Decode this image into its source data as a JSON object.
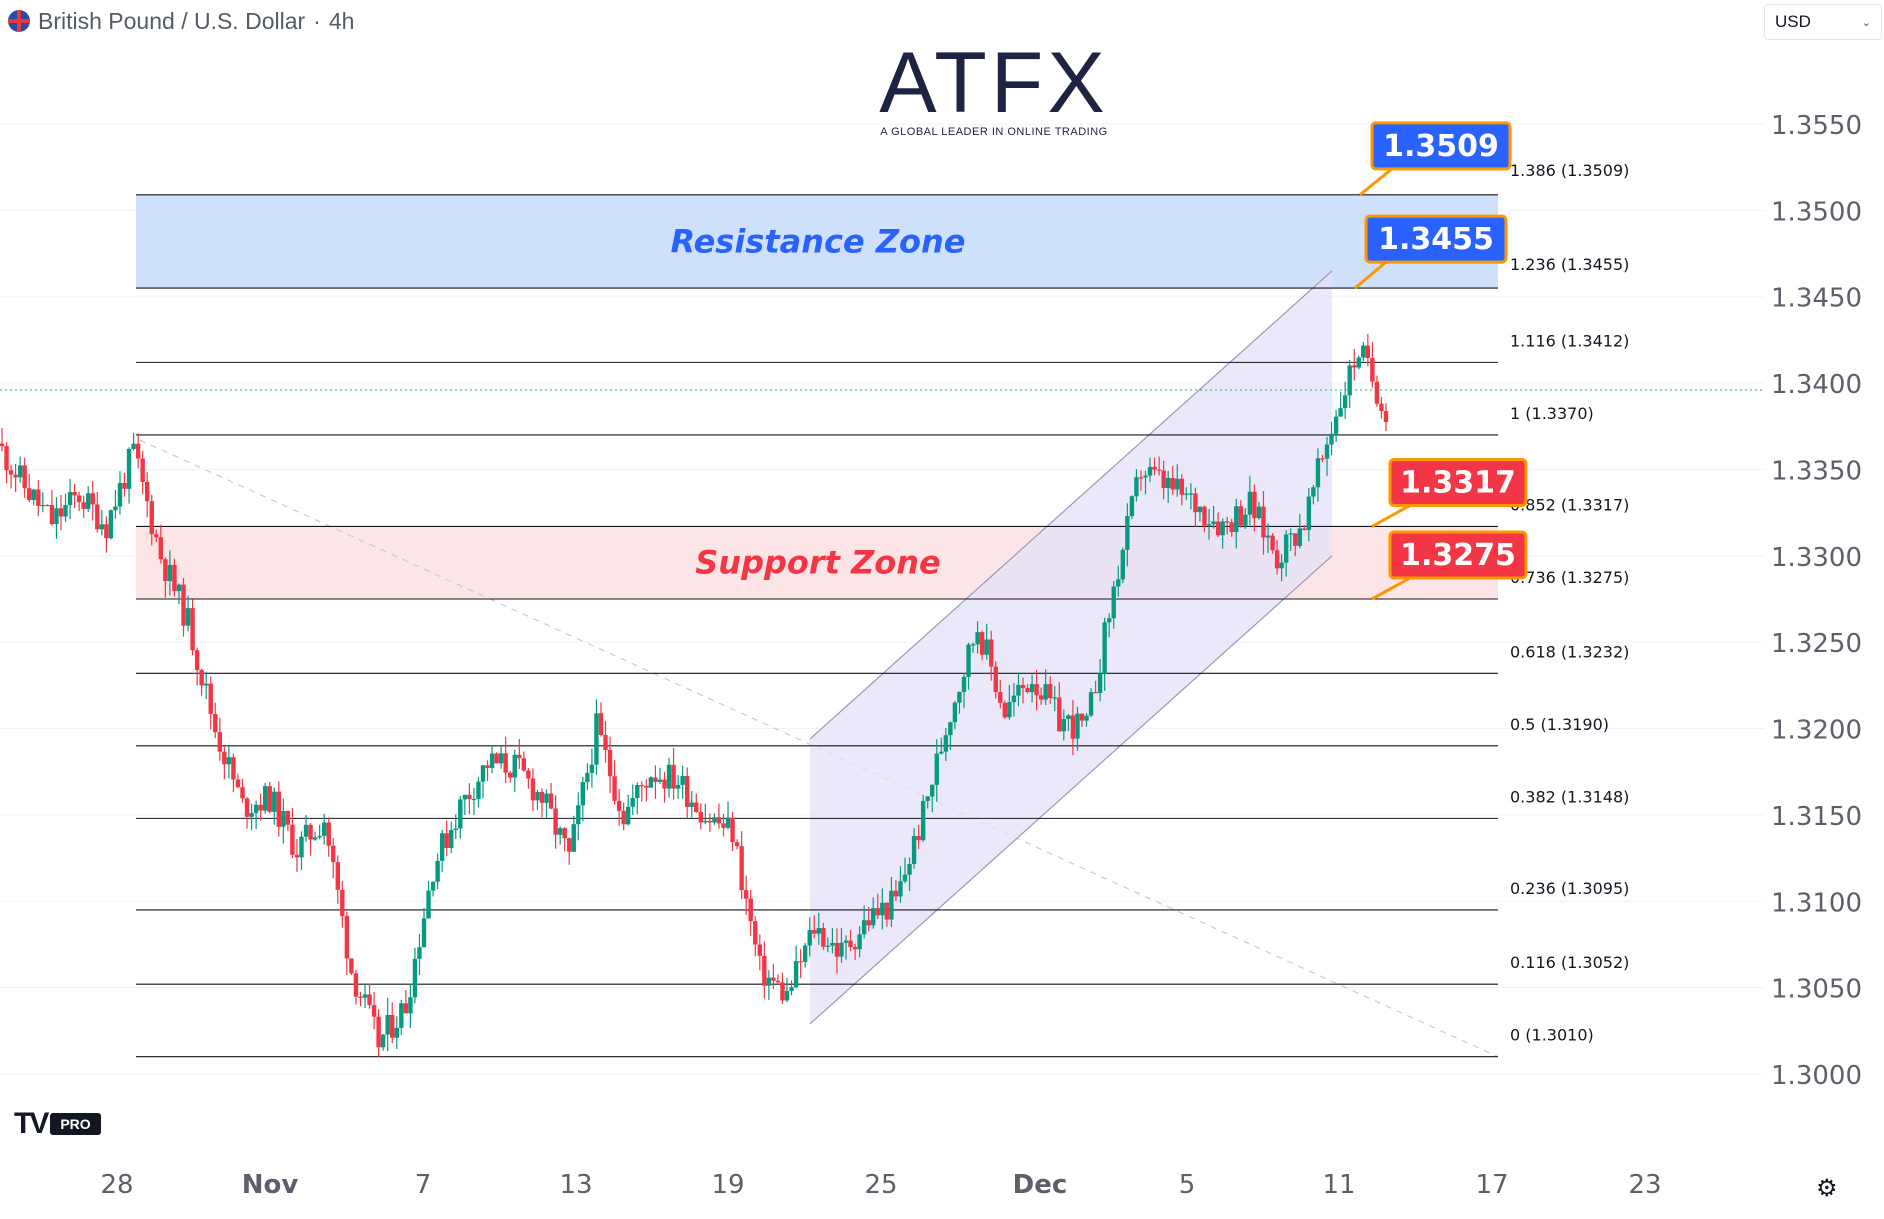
{
  "header": {
    "symbol": "British Pound / U.S. Dollar",
    "timeframe": "4h",
    "currency_selector": "USD"
  },
  "logo": {
    "name": "ATFX",
    "tagline": "A GLOBAL LEADER IN ONLINE TRADING"
  },
  "platform_badge": "PRO",
  "colors": {
    "up": "#089981",
    "down": "#f23645",
    "resistance_fill": "#cfe0fb",
    "support_fill": "#fde4e6",
    "channel_fill": "#e4e1f7",
    "blue_label": "#2962ff",
    "red_label": "#f23645",
    "orange_border": "#ff9800"
  },
  "chart_data": {
    "type": "candlestick",
    "x_ticks": [
      "28",
      "Nov",
      "7",
      "13",
      "19",
      "25",
      "Dec",
      "5",
      "11",
      "17",
      "23"
    ],
    "y_ticks": [
      "1.3000",
      "1.3050",
      "1.3100",
      "1.3150",
      "1.3200",
      "1.3250",
      "1.3300",
      "1.3350",
      "1.3400",
      "1.3450",
      "1.3500",
      "1.3550"
    ],
    "ylim": [
      1.2985,
      1.3565
    ],
    "last_price": 1.3396,
    "zones": [
      {
        "label": "Resistance Zone",
        "from": 1.3455,
        "to": 1.3509
      },
      {
        "label": "Support Zone",
        "from": 1.3275,
        "to": 1.3317
      }
    ],
    "fib_levels": [
      {
        "ratio": "0",
        "price": "1.3010",
        "text": "0 (1.3010)"
      },
      {
        "ratio": "0.116",
        "price": "1.3052",
        "text": "0.116 (1.3052)"
      },
      {
        "ratio": "0.236",
        "price": "1.3095",
        "text": "0.236 (1.3095)"
      },
      {
        "ratio": "0.382",
        "price": "1.3148",
        "text": "0.382 (1.3148)"
      },
      {
        "ratio": "0.5",
        "price": "1.3190",
        "text": "0.5 (1.3190)"
      },
      {
        "ratio": "0.618",
        "price": "1.3232",
        "text": "0.618 (1.3232)"
      },
      {
        "ratio": "0.736",
        "price": "1.3275",
        "text": "0.736 (1.3275)"
      },
      {
        "ratio": "0.852",
        "price": "1.3317",
        "text": "0.852 (1.3317)"
      },
      {
        "ratio": "1",
        "price": "1.3370",
        "text": "1 (1.3370)"
      },
      {
        "ratio": "1.116",
        "price": "1.3412",
        "text": "1.116 (1.3412)"
      },
      {
        "ratio": "1.236",
        "price": "1.3455",
        "text": "1.236 (1.3455)"
      },
      {
        "ratio": "1.386",
        "price": "1.3509",
        "text": "1.386 (1.3509)"
      }
    ],
    "callouts": [
      {
        "text": "1.3509",
        "price": 1.3509,
        "color": "blue"
      },
      {
        "text": "1.3455",
        "price": 1.3455,
        "color": "blue"
      },
      {
        "text": "1.3317",
        "price": 1.3317,
        "color": "red"
      },
      {
        "text": "1.3275",
        "price": 1.3275,
        "color": "red"
      }
    ],
    "channel": {
      "lower_start": 1.3029,
      "lower_end": 1.33,
      "upper_start": 1.3194,
      "upper_end": 1.3465
    },
    "close_path": [
      [
        "Oct 25",
        1.3365
      ],
      [
        "Oct 26",
        1.334
      ],
      [
        "Oct 27",
        1.332
      ],
      [
        "Oct 28",
        1.3335
      ],
      [
        "Oct 29",
        1.3318
      ],
      [
        "Oct 29",
        1.336
      ],
      [
        "Oct 30",
        1.33
      ],
      [
        "Oct 30",
        1.3262
      ],
      [
        "Oct 31",
        1.32
      ],
      [
        "Nov 1",
        1.3155
      ],
      [
        "Nov 2",
        1.316
      ],
      [
        "Nov 3",
        1.313
      ],
      [
        "Nov 4",
        1.3148
      ],
      [
        "Nov 5",
        1.306
      ],
      [
        "Nov 6",
        1.3018
      ],
      [
        "Nov 7",
        1.304
      ],
      [
        "Nov 8",
        1.312
      ],
      [
        "Nov 9",
        1.3155
      ],
      [
        "Nov 10",
        1.318
      ],
      [
        "Nov 11",
        1.3178
      ],
      [
        "Nov 12",
        1.316
      ],
      [
        "Nov 13",
        1.3125
      ],
      [
        "Nov 14",
        1.32
      ],
      [
        "Nov 15",
        1.315
      ],
      [
        "Nov 16",
        1.3175
      ],
      [
        "Nov 17",
        1.317
      ],
      [
        "Nov 18",
        1.315
      ],
      [
        "Nov 19",
        1.314
      ],
      [
        "Nov 20",
        1.306
      ],
      [
        "Nov 21",
        1.3045
      ],
      [
        "Nov 22",
        1.3085
      ],
      [
        "Nov 23",
        1.307
      ],
      [
        "Nov 24",
        1.309
      ],
      [
        "Nov 25",
        1.31
      ],
      [
        "Nov 26",
        1.315
      ],
      [
        "Nov 27",
        1.321
      ],
      [
        "Nov 28",
        1.326
      ],
      [
        "Nov 29",
        1.321
      ],
      [
        "Nov 30",
        1.323
      ],
      [
        "Dec 1",
        1.3205
      ],
      [
        "Dec 2",
        1.32
      ],
      [
        "Dec 3",
        1.328
      ],
      [
        "Dec 4",
        1.335
      ],
      [
        "Dec 5",
        1.334
      ],
      [
        "Dec 6",
        1.333
      ],
      [
        "Dec 7",
        1.3318
      ],
      [
        "Dec 8",
        1.333
      ],
      [
        "Dec 9",
        1.33
      ],
      [
        "Dec 10",
        1.332
      ],
      [
        "Dec 11",
        1.3375
      ],
      [
        "Dec 11",
        1.342
      ],
      [
        "Dec 12",
        1.3385
      ]
    ]
  }
}
